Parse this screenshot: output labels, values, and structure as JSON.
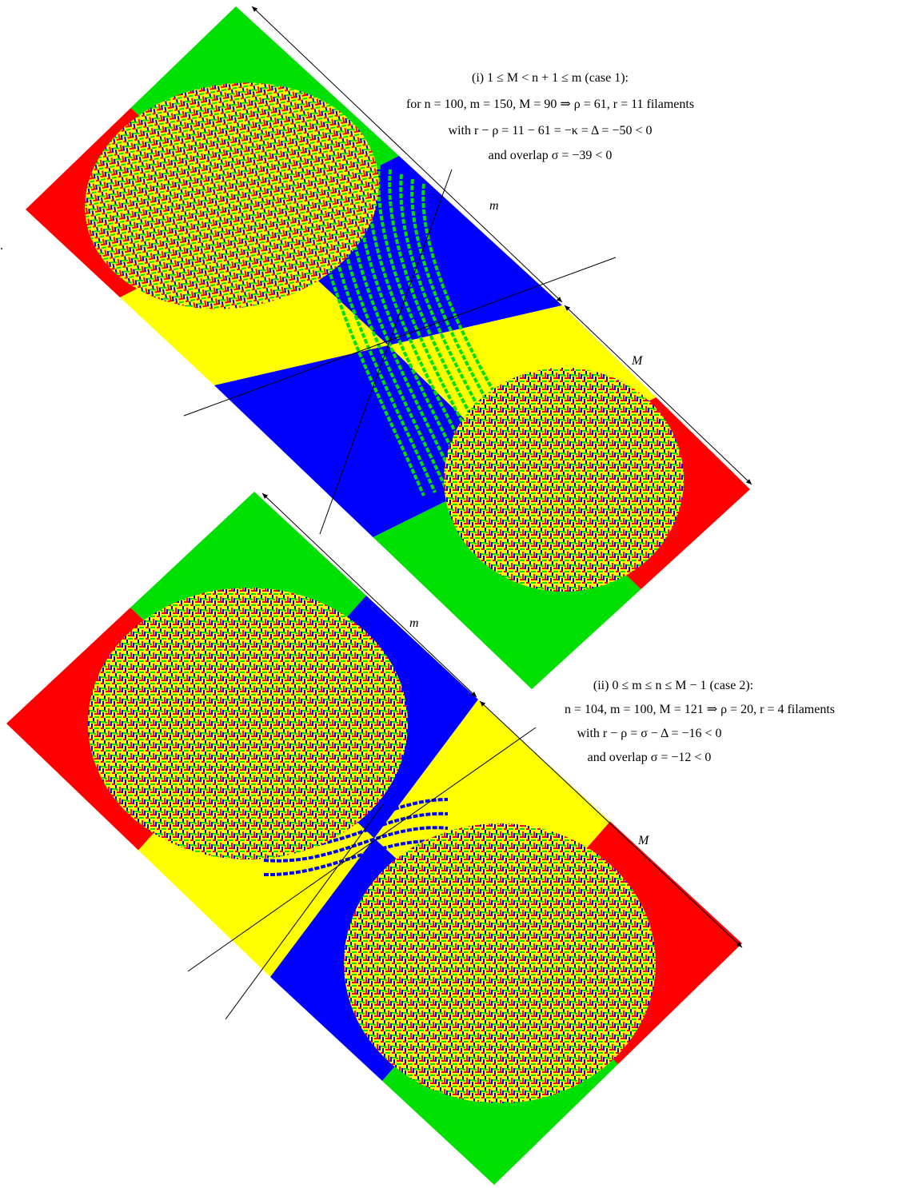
{
  "stray_mark": ".",
  "top": {
    "caption": [
      "(i) 1 ≤ M < n + 1 ≤ m (case 1):",
      "for  n = 100, m = 150,  M = 90 ⇒ ρ = 61,  r = 11 filaments",
      "with r − ρ = 11 − 61 = −κ = Δ = −50 < 0",
      "and overlap σ = −39 < 0"
    ],
    "label_m": "m",
    "label_M": "M"
  },
  "bottom": {
    "caption": [
      "(ii) 0 ≤ m ≤ n ≤ M − 1 (case 2):",
      "n = 104,  m = 100,  M = 121 ⇒ ρ = 20,  r = 4 filaments",
      "with r − ρ = σ − Δ = −16 < 0",
      "and overlap σ = −12 < 0"
    ],
    "label_m": "m",
    "label_M": "M"
  }
}
